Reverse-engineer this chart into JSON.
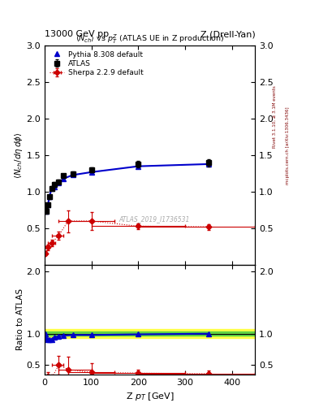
{
  "title_left": "13000 GeV pp",
  "title_right": "Z (Drell-Yan)",
  "plot_title": "<N_{ch}> vs p_T^Z (ATLAS UE in Z production)",
  "xlabel": "Z p_{T} [GeV]",
  "right_label_top": "Rivet 3.1.10, ≥ 3.1M events",
  "right_label_bot": "mcplots.cern.ch [arXiv:1306.3436]",
  "watermark": "ATLAS_2019_I1736531",
  "atlas_x": [
    2,
    4,
    7,
    10,
    15,
    20,
    30,
    40,
    60,
    100,
    200,
    350
  ],
  "atlas_y": [
    0.75,
    0.73,
    0.82,
    0.93,
    1.05,
    1.1,
    1.14,
    1.22,
    1.25,
    1.3,
    1.38,
    1.4
  ],
  "atlas_yerr": [
    0.03,
    0.03,
    0.03,
    0.03,
    0.03,
    0.03,
    0.03,
    0.03,
    0.03,
    0.03,
    0.04,
    0.05
  ],
  "pythia_x": [
    2,
    4,
    7,
    10,
    15,
    20,
    30,
    40,
    60,
    100,
    200,
    350
  ],
  "pythia_y": [
    0.75,
    0.73,
    0.82,
    0.93,
    1.05,
    1.07,
    1.12,
    1.18,
    1.23,
    1.27,
    1.35,
    1.38
  ],
  "sherpa_x": [
    2,
    7,
    15,
    30,
    50,
    100,
    200,
    350
  ],
  "sherpa_y": [
    0.16,
    0.24,
    0.3,
    0.4,
    0.6,
    0.6,
    0.53,
    0.52
  ],
  "sherpa_xerr_lo": [
    2,
    5,
    8,
    15,
    20,
    50,
    100,
    150
  ],
  "sherpa_xerr_hi": [
    2,
    3,
    8,
    10,
    50,
    50,
    100,
    100
  ],
  "sherpa_yerr": [
    0.03,
    0.04,
    0.04,
    0.06,
    0.15,
    0.12,
    0.04,
    0.04
  ],
  "pythia_ratio_x": [
    2,
    4,
    7,
    10,
    15,
    20,
    30,
    40,
    60,
    100,
    200,
    350
  ],
  "pythia_ratio_y": [
    1.0,
    0.92,
    0.9,
    0.9,
    0.91,
    0.94,
    0.96,
    0.97,
    0.98,
    0.98,
    0.99,
    1.0
  ],
  "sherpa_ratio_x": [
    2,
    7,
    15,
    30,
    50,
    100,
    200,
    350
  ],
  "sherpa_ratio_y": [
    0.22,
    0.32,
    0.29,
    0.5,
    0.43,
    0.38,
    0.37,
    0.36
  ],
  "sherpa_ratio_xerr_lo": [
    2,
    5,
    8,
    15,
    20,
    50,
    100,
    150
  ],
  "sherpa_ratio_xerr_hi": [
    2,
    3,
    8,
    10,
    50,
    50,
    100,
    100
  ],
  "sherpa_ratio_yerr": [
    0.04,
    0.06,
    0.06,
    0.15,
    0.2,
    0.15,
    0.05,
    0.05
  ],
  "band_yellow_lo": 0.93,
  "band_yellow_hi": 1.08,
  "band_green_lo": 0.965,
  "band_green_hi": 1.035,
  "xlim": [
    0,
    450
  ],
  "ylim_main": [
    0,
    3.0
  ],
  "ylim_ratio": [
    0.35,
    2.1
  ],
  "yticks_main": [
    0.5,
    1.0,
    1.5,
    2.0,
    2.5,
    3.0
  ],
  "yticks_ratio": [
    0.5,
    1.0,
    2.0
  ],
  "atlas_color": "#000000",
  "pythia_color": "#0000cc",
  "sherpa_color": "#cc0000",
  "band_yellow_color": "#ffff44",
  "band_green_color": "#44cc44"
}
